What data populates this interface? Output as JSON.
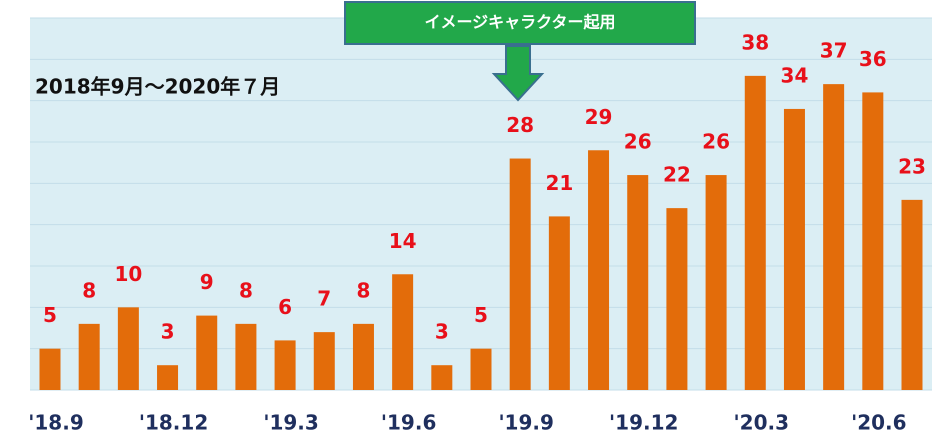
{
  "chart_data": {
    "type": "bar",
    "subtitle": "2018年9月～2020年７月",
    "annotation": "イメージキャラクター起用",
    "categories": [
      "'18.9",
      null,
      null,
      "'18.12",
      null,
      null,
      "'19.3",
      null,
      null,
      "'19.6",
      null,
      null,
      "'19.9",
      null,
      null,
      "'19.12",
      null,
      null,
      "'20.3",
      null,
      null,
      "'20.6",
      null
    ],
    "values": [
      5,
      8,
      10,
      3,
      9,
      8,
      6,
      7,
      8,
      14,
      3,
      5,
      28,
      21,
      29,
      26,
      22,
      26,
      38,
      34,
      37,
      36,
      23
    ],
    "color": "#e36c0a",
    "ylim": [
      0,
      45
    ],
    "yticks": [
      0,
      5,
      10,
      15,
      20,
      25,
      30,
      35,
      40,
      45
    ],
    "grid": true
  }
}
